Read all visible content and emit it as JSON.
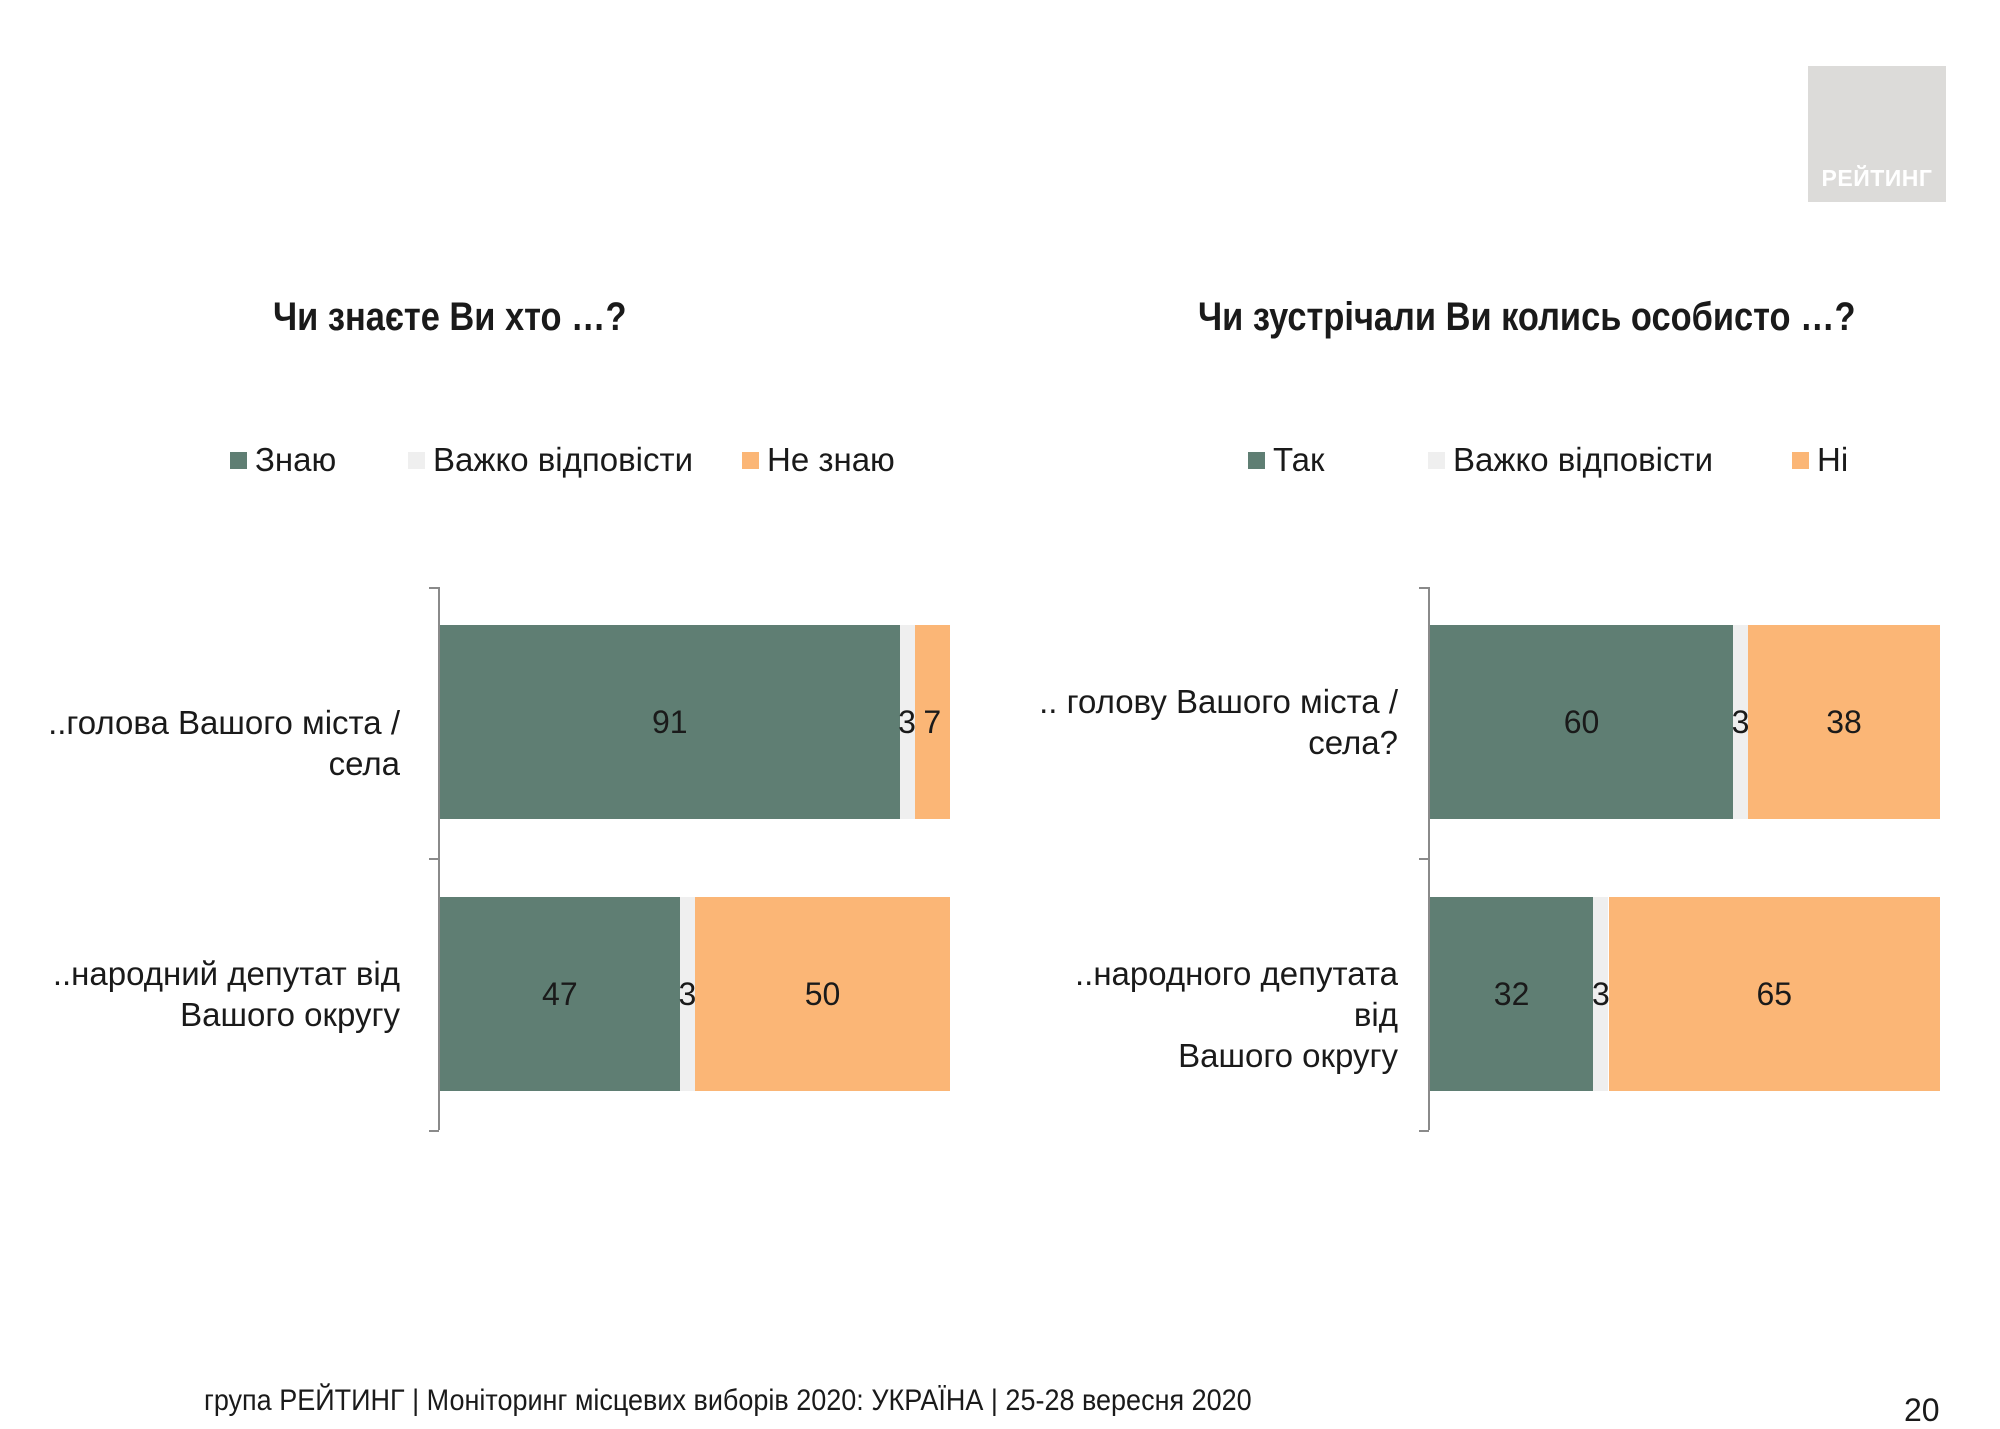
{
  "brand": {
    "logo_text": "РЕЙТИНГ"
  },
  "colors": {
    "green": "#5f7e73",
    "light": "#efefef",
    "orange": "#fbb676"
  },
  "footer": {
    "text": "група РЕЙТИНГ | Моніторинг місцевих виборів 2020: УКРАЇНА | 25-28 вересня 2020",
    "page": "20"
  },
  "chart_data": [
    {
      "type": "bar",
      "stacked": true,
      "orientation": "horizontal",
      "title": "Чи знаєте Ви хто …?",
      "categories": [
        "..голова Вашого міста / села",
        "..народний депутат від\nВашого округу"
      ],
      "series": [
        {
          "name": "Знаю",
          "color": "#5f7e73",
          "values": [
            91,
            47
          ]
        },
        {
          "name": "Важко відповісти",
          "color": "#efefef",
          "values": [
            3,
            3
          ]
        },
        {
          "name": "Не знаю",
          "color": "#fbb676",
          "values": [
            7,
            50
          ]
        }
      ],
      "xlim": [
        0,
        100
      ],
      "legend": "top"
    },
    {
      "type": "bar",
      "stacked": true,
      "orientation": "horizontal",
      "title": "Чи зустрічали Ви колись особисто …?",
      "categories": [
        ".. голову Вашого міста /\nсела?",
        "..народного депутата від\nВашого округу"
      ],
      "series": [
        {
          "name": "Так",
          "color": "#5f7e73",
          "values": [
            60,
            32
          ]
        },
        {
          "name": "Важко відповісти",
          "color": "#efefef",
          "values": [
            3,
            3
          ]
        },
        {
          "name": "Ні",
          "color": "#fbb676",
          "values": [
            38,
            65
          ]
        }
      ],
      "xlim": [
        0,
        100
      ],
      "legend": "top"
    }
  ]
}
